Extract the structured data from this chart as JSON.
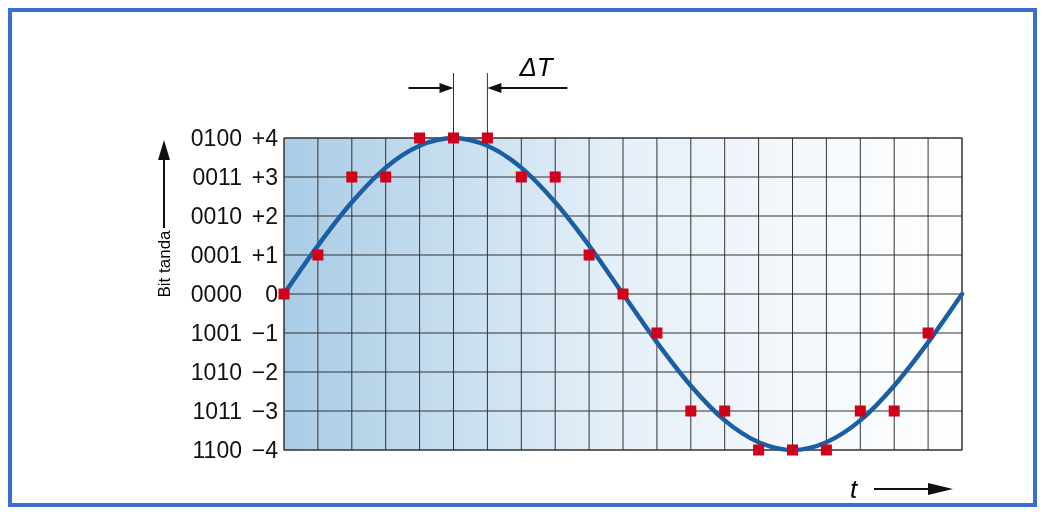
{
  "chart_data": {
    "type": "line",
    "ylabel": "Bit tanda",
    "xlabel": "t",
    "annotations": [
      "ΔT",
      "0100",
      "0011",
      "0010",
      "0001",
      "0000",
      "1001",
      "1010",
      "1011",
      "1100"
    ],
    "categories": [
      null,
      null,
      null,
      null,
      null,
      null,
      null,
      null,
      null,
      null,
      null,
      null,
      null,
      null,
      null,
      null,
      null,
      null,
      null,
      null,
      null
    ],
    "ylim": [
      -4,
      4
    ],
    "yticks": [
      {
        "value": 4,
        "label": "+4"
      },
      {
        "value": 3,
        "label": "+3"
      },
      {
        "value": 2,
        "label": "+2"
      },
      {
        "value": 1,
        "label": "+1"
      },
      0,
      {
        "value": -1,
        "label": "−1"
      },
      {
        "value": -2,
        "label": "−2"
      },
      {
        "value": -3,
        "label": "−3"
      },
      {
        "value": -4,
        "label": "−4"
      }
    ],
    "tick_labels": "y",
    "grid": true,
    "series": [
      {
        "type": "line",
        "color": "#1a5fa3",
        "marker": "none",
        "values": [
          0,
          1.24,
          2.35,
          3.24,
          3.8,
          4,
          3.8,
          3.24,
          2.35,
          1.24,
          0,
          -1.24,
          -2.35,
          -3.24,
          -3.8,
          -4,
          -3.8,
          -3.24,
          -2.35,
          -1.24,
          0
        ]
      },
      {
        "type": "scatter",
        "color": "#d0021b",
        "marker": "square",
        "values": [
          0,
          1,
          3,
          3,
          4,
          4,
          4,
          3,
          3,
          1,
          0,
          -1,
          -3,
          -3,
          -4,
          -4,
          -4,
          -3,
          -3,
          -1,
          null
        ]
      }
    ]
  }
}
